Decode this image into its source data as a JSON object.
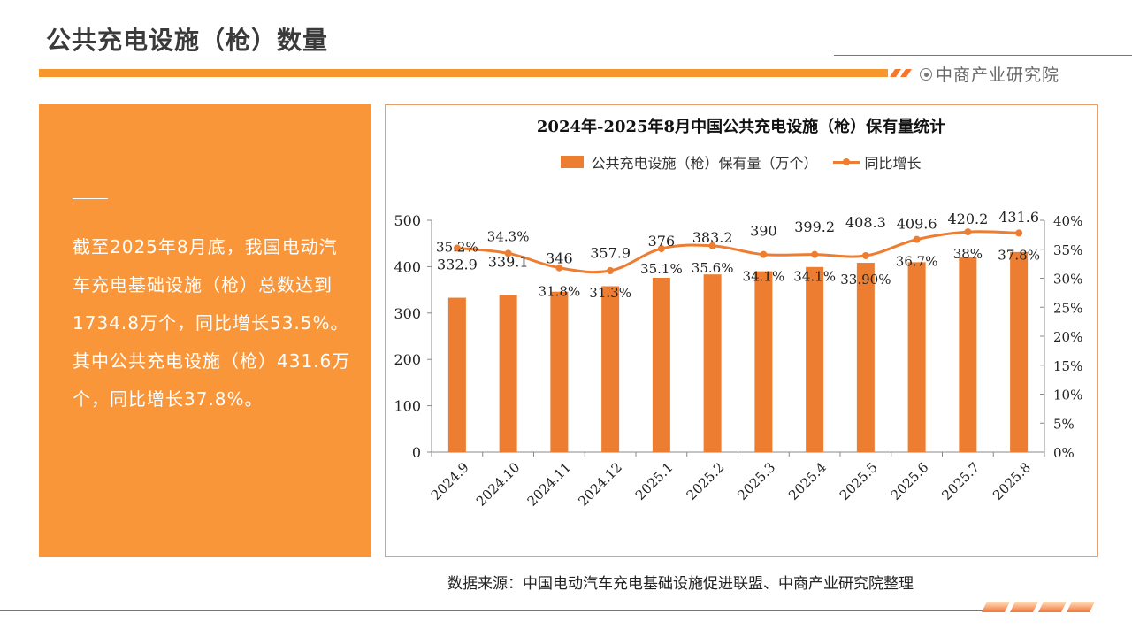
{
  "header": {
    "title": "公共充电设施（枪）数量",
    "brand": "中商产业研究院"
  },
  "summary": {
    "text": "截至2025年8月底，我国电动汽车充电基础设施（枪）总数达到1734.8万个，同比增长53.5%。其中公共充电设施（枪）431.6万个，同比增长37.8%。"
  },
  "footer": {
    "source": "数据来源：中国电动汽车充电基础设施促进联盟、中商产业研究院整理"
  },
  "colors": {
    "accent": "#f7962d",
    "panel": "#fa963a",
    "bar": "#ed7d31",
    "line": "#ed7d31"
  },
  "chart_data": {
    "type": "bar+line",
    "title": "2024年-2025年8月中国公共充电设施（枪）保有量统计",
    "categories": [
      "2024.9",
      "2024.10",
      "2024.11",
      "2024.12",
      "2025.1",
      "2025.2",
      "2025.3",
      "2025.4",
      "2025.5",
      "2025.6",
      "2025.7",
      "2025.8"
    ],
    "series": [
      {
        "name": "公共充电设施（枪）保有量（万个）",
        "type": "bar",
        "axis": "left",
        "values": [
          332.9,
          339.1,
          346,
          357.9,
          376,
          383.2,
          390,
          399.2,
          408.3,
          409.6,
          420.2,
          431.6
        ],
        "labels": [
          "332.9",
          "339.1",
          "346",
          "357.9",
          "376",
          "383.2",
          "390",
          "399.2",
          "408.3",
          "409.6",
          "420.2",
          "431.6"
        ]
      },
      {
        "name": "同比增长",
        "type": "line",
        "axis": "right",
        "values": [
          35.2,
          34.3,
          31.8,
          31.3,
          35.1,
          35.6,
          34.1,
          34.1,
          33.9,
          36.7,
          38,
          37.8
        ],
        "labels": [
          "35.2%",
          "34.3%",
          "31.8%",
          "31.3%",
          "35.1%",
          "35.6%",
          "34.1%",
          "34.1%",
          "33.90%",
          "36.7%",
          "38%",
          "37.8%"
        ]
      }
    ],
    "y_left": {
      "min": 0,
      "max": 500,
      "ticks": [
        "0",
        "100",
        "200",
        "300",
        "400",
        "500"
      ]
    },
    "y_right": {
      "min": 0,
      "max": 40,
      "ticks": [
        "0%",
        "5%",
        "10%",
        "15%",
        "20%",
        "25%",
        "30%",
        "35%",
        "40%"
      ]
    },
    "legend_position": "top",
    "grid": false
  }
}
